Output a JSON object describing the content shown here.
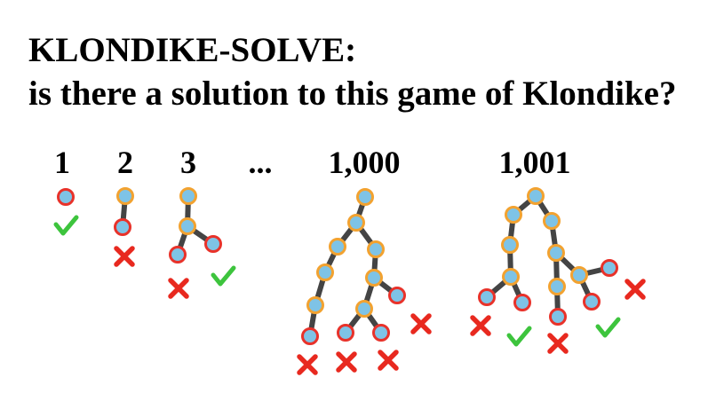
{
  "slide": {
    "title_line1": "KLONDIKE-SOLVE:",
    "title_line2": "is there a solution to this game of Klondike?"
  },
  "trees": [
    {
      "label": "1"
    },
    {
      "label": "2"
    },
    {
      "label": "3"
    },
    {
      "label": "..."
    },
    {
      "label": "1,000"
    },
    {
      "label": "1,001"
    }
  ],
  "colors": {
    "node_fill": "#7ec3e6",
    "node_stroke_orange": "#f2a230",
    "node_stroke_red": "#e8322a",
    "edge": "#444444",
    "check": "#3dc43d",
    "cross": "#e8291f"
  }
}
